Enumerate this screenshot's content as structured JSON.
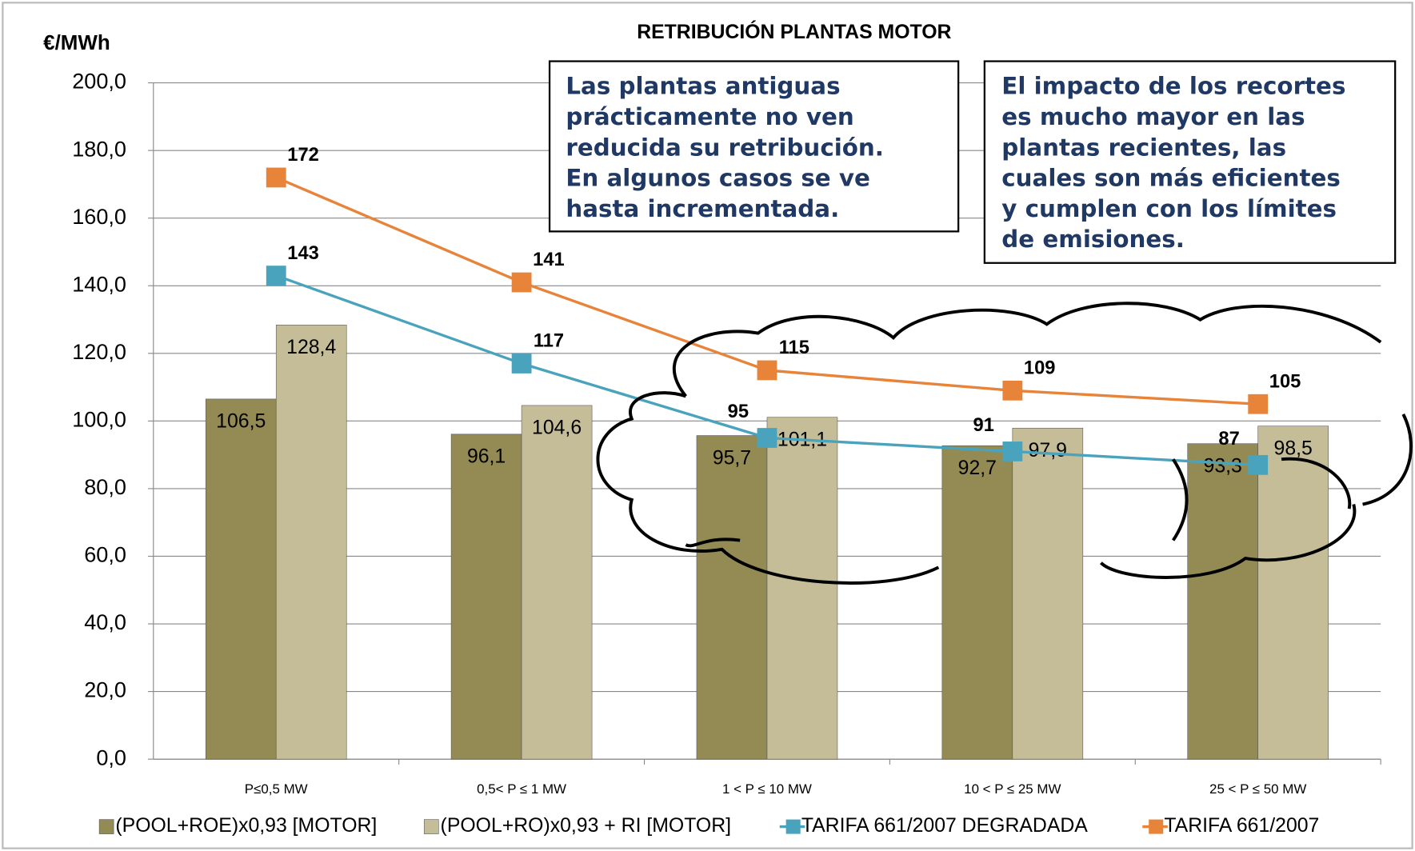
{
  "chart_data": {
    "type": "bar",
    "title": "RETRIBUCIÓN PLANTAS MOTOR",
    "y_axis_label": "€/MWh",
    "categories": [
      "P≤0,5 MW",
      "0,5< P ≤ 1 MW",
      "1 < P ≤ 10 MW",
      "10 < P ≤ 25 MW",
      "25 < P ≤ 50 MW"
    ],
    "series": [
      {
        "name": "(POOL+ROE)x0,93 [MOTOR]",
        "type": "bar",
        "color": "#948a54",
        "values": [
          106.5,
          96.1,
          95.7,
          92.7,
          93.3
        ],
        "value_labels": [
          "106,5",
          "96,1",
          "95,7",
          "92,7",
          "93,3"
        ]
      },
      {
        "name": "(POOL+RO)x0,93 + RI [MOTOR]",
        "type": "bar",
        "color": "#c4bd97",
        "values": [
          128.4,
          104.6,
          101.1,
          97.9,
          98.5
        ],
        "value_labels": [
          "128,4",
          "104,6",
          "101,1",
          "97,9",
          "98,5"
        ]
      },
      {
        "name": "TARIFA 661/2007 DEGRADADA",
        "type": "line",
        "color": "#4aa3bd",
        "values": [
          143,
          117,
          95,
          91,
          87
        ]
      },
      {
        "name": "TARIFA 661/2007",
        "type": "line",
        "color": "#e8833a",
        "values": [
          172,
          141,
          115,
          109,
          105
        ]
      }
    ],
    "ylim": [
      0,
      200
    ],
    "yticks": [
      {
        "value": 0,
        "label": "0,0"
      },
      {
        "value": 20,
        "label": "20,0"
      },
      {
        "value": 40,
        "label": "40,0"
      },
      {
        "value": 60,
        "label": "60,0"
      },
      {
        "value": 80,
        "label": "80,0"
      },
      {
        "value": 100,
        "label": "100,0"
      },
      {
        "value": 120,
        "label": "120,0"
      },
      {
        "value": 140,
        "label": "140,0"
      },
      {
        "value": 160,
        "label": "160,0"
      },
      {
        "value": 180,
        "label": "180,0"
      },
      {
        "value": 200,
        "label": "200,0"
      }
    ],
    "grid": true,
    "legend": "bottom",
    "annotations": [
      {
        "lines": [
          "Las plantas antiguas",
          "prácticamente no ven",
          "reducida su retribución.",
          "En algunos casos se ve",
          "hasta incrementada."
        ]
      },
      {
        "lines": [
          "El impacto de los recortes",
          "es mucho mayor en las",
          "plantas recientes, las",
          "cuales son más eficientes",
          "y cumplen con los límites",
          "de emisiones."
        ]
      }
    ]
  }
}
